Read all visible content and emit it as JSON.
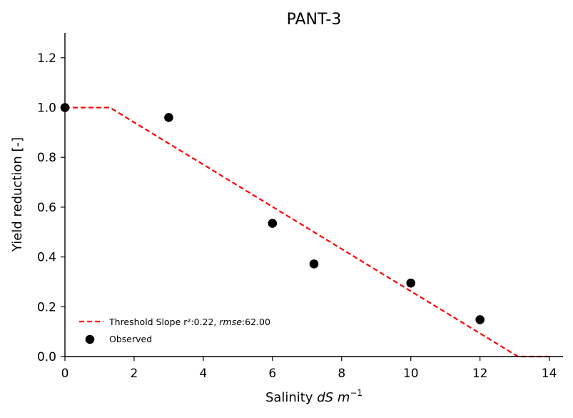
{
  "chart_data": {
    "type": "scatter",
    "title": "PANT-3",
    "xlabel": {
      "base": "Salinity ",
      "unit": "dS m",
      "exponent": "−1"
    },
    "ylabel": "Yield reduction [-]",
    "xlim": [
      0,
      14.4
    ],
    "ylim": [
      0,
      1.3
    ],
    "xticks": [
      0,
      2,
      4,
      6,
      8,
      10,
      12,
      14
    ],
    "yticks": [
      0.0,
      0.2,
      0.4,
      0.6,
      0.8,
      1.0,
      1.2
    ],
    "xtick_labels": [
      "0",
      "2",
      "4",
      "6",
      "8",
      "10",
      "12",
      "14"
    ],
    "ytick_labels": [
      "0.0",
      "0.2",
      "0.4",
      "0.6",
      "0.8",
      "1.0",
      "1.2"
    ],
    "grid": false,
    "legend_position": "lower-left",
    "series": [
      {
        "name": "Threshold Slope",
        "kind": "line",
        "style": "dashed",
        "color": "#ff0000",
        "x": [
          0,
          1.3,
          13.1,
          14.0
        ],
        "y": [
          1.0,
          1.0,
          0.0,
          0.0
        ]
      },
      {
        "name": "Observed",
        "kind": "scatter",
        "color": "#000000",
        "x": [
          0,
          3.0,
          6.0,
          7.2,
          10.0,
          12.0
        ],
        "y": [
          1.0,
          0.96,
          0.535,
          0.372,
          0.295,
          0.148
        ]
      }
    ],
    "legend": {
      "line_label": {
        "prefix": "Threshold Slope r²:0.22, ",
        "metric": "rmse",
        "value": ":62.00"
      },
      "scatter_label": "Observed"
    }
  }
}
